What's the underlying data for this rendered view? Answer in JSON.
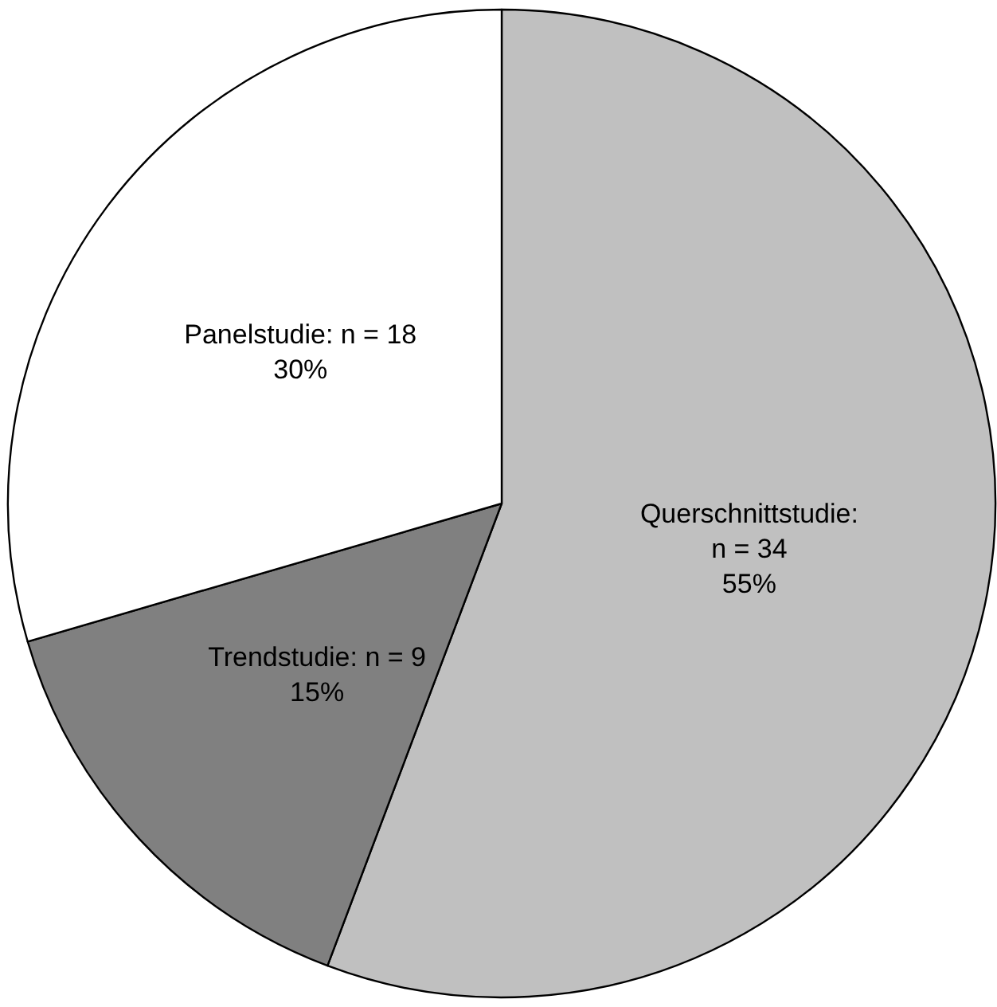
{
  "chart_data": {
    "type": "pie",
    "categories": [
      "Querschnittstudie",
      "Trendstudie",
      "Panelstudie"
    ],
    "values": [
      34,
      9,
      18
    ],
    "value_labels": [
      ":\nn = 34\n55%",
      ": n = 9\n15%",
      ": n = 18\n30%"
    ],
    "colors": [
      "#c0c0c0",
      "#808080",
      "#ffffff"
    ],
    "legend": false
  }
}
